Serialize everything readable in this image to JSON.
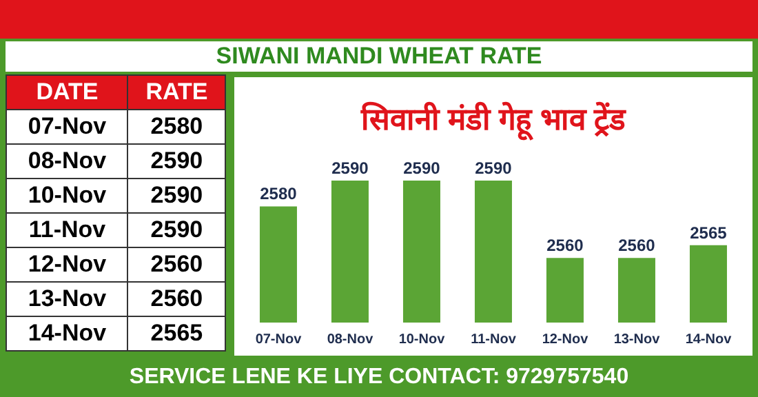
{
  "chart_data": {
    "type": "bar",
    "title": "SIWANI MANDI WHEAT RATE",
    "subtitle": "सिवानी मंडी गेहू भाव ट्रेंड",
    "categories": [
      "07-Nov",
      "08-Nov",
      "10-Nov",
      "11-Nov",
      "12-Nov",
      "13-Nov",
      "14-Nov"
    ],
    "values": [
      2580,
      2590,
      2590,
      2590,
      2560,
      2560,
      2565
    ],
    "value_labels": [
      "2580",
      "2590",
      "2590",
      "2590",
      "2560",
      "2560",
      "2565"
    ],
    "ylim": [
      2535,
      2590
    ],
    "color": "#5ba535",
    "annotations": [
      "DATE",
      "RATE",
      "SERVICE LENE KE LIYE CONTACT: 9729757540"
    ]
  }
}
